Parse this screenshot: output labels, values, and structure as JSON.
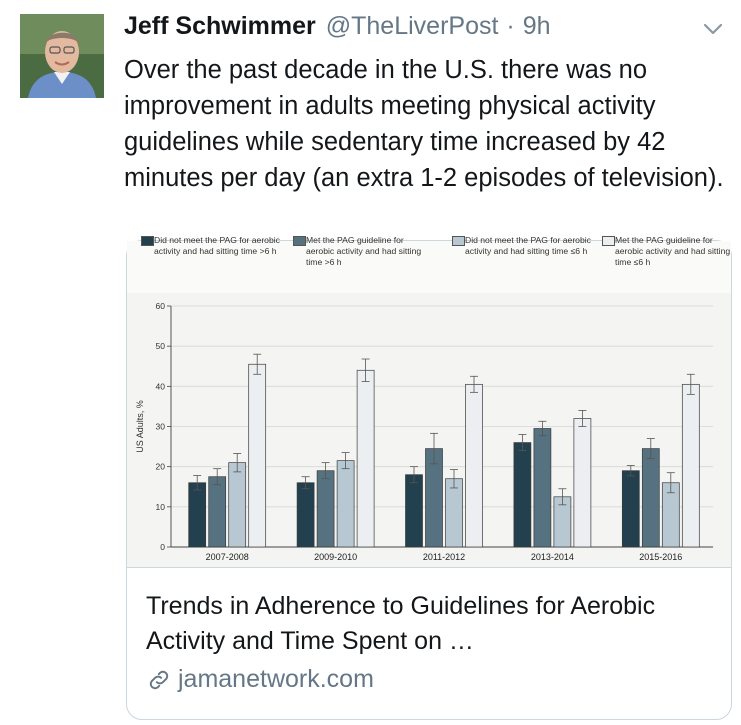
{
  "tweet": {
    "author_name": "Jeff Schwimmer",
    "handle": "@TheLiverPost",
    "separator": "·",
    "time": "9h",
    "text": "Over the past decade in the U.S. there was no improvement in adults meeting physical activity guidelines while sedentary time increased by 42 minutes per day (an extra 1-2 episodes of television)."
  },
  "card": {
    "title": "Trends in Adherence to Guidelines for Aerobic Activity and Time Spent on …",
    "domain": "jamanetwork.com"
  },
  "icons": {
    "chevron": "chevron-down-icon",
    "link": "link-icon"
  },
  "colors": {
    "series": [
      "#22404e",
      "#56717f",
      "#b7c8d3",
      "#eceff1"
    ],
    "text_secondary": "#657786",
    "border": "#ccd6dd"
  },
  "chart_data": {
    "type": "bar",
    "legend": [
      "Did not meet the PAG for aerobic activity and had sitting time >6 h",
      "Met the PAG guideline for aerobic activity and had sitting time >6 h",
      "Did not meet the PAG for aerobic activity and had sitting time ≤6 h",
      "Met the PAG guideline for aerobic activity and had sitting time ≤6 h"
    ],
    "categories": [
      "2007-2008",
      "2009-2010",
      "2011-2012",
      "2013-2014",
      "2015-2016"
    ],
    "series": [
      {
        "name": "Did not meet the PAG for aerobic activity and had sitting time >6 h",
        "values": [
          16,
          16,
          18,
          26,
          19
        ],
        "err": [
          1.8,
          1.5,
          2.0,
          2.0,
          1.3
        ]
      },
      {
        "name": "Met the PAG guideline for aerobic activity and had sitting time >6 h",
        "values": [
          17.5,
          19,
          24.5,
          29.5,
          24.5
        ],
        "err": [
          2.0,
          2.0,
          3.8,
          1.8,
          2.5
        ]
      },
      {
        "name": "Did not meet the PAG for aerobic activity and had sitting time ≤6 h",
        "values": [
          21,
          21.5,
          17,
          12.5,
          16
        ],
        "err": [
          2.3,
          2.0,
          2.3,
          2.0,
          2.5
        ]
      },
      {
        "name": "Met the PAG guideline for aerobic activity and had sitting time ≤6 h",
        "values": [
          45.5,
          44,
          40.5,
          32,
          40.5
        ],
        "err": [
          2.5,
          2.8,
          2.0,
          2.0,
          2.5
        ]
      }
    ],
    "ylabel": "US Adults, %",
    "ylim": [
      0,
      60
    ],
    "yticks": [
      "0",
      "10",
      "20",
      "30",
      "40",
      "50",
      "60"
    ],
    "grid": true
  }
}
